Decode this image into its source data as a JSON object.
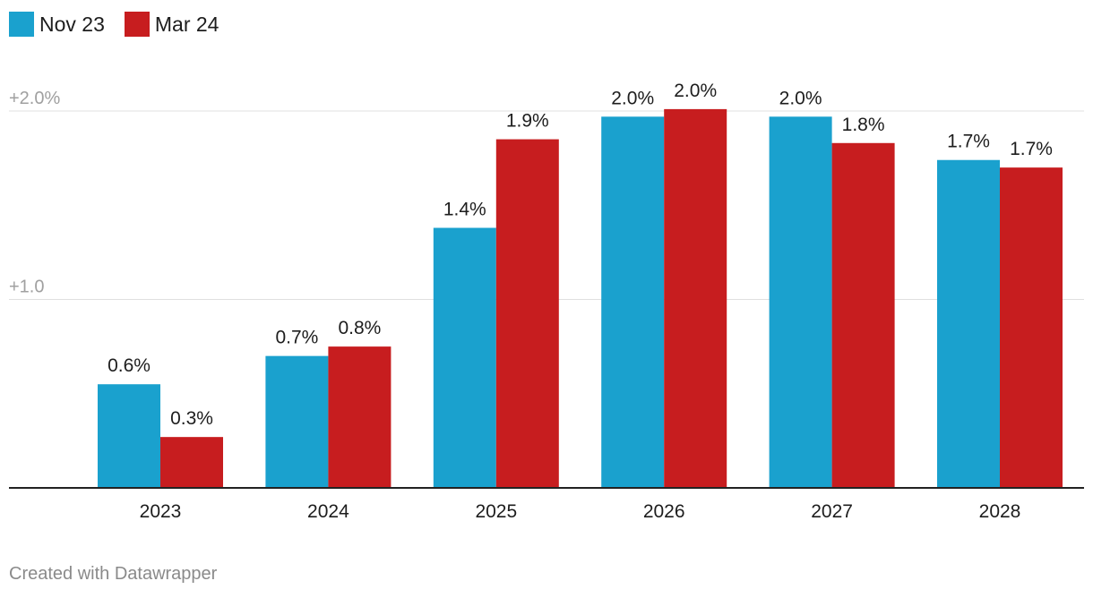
{
  "legend": [
    {
      "name": "Nov 23",
      "color": "#1aa1ce"
    },
    {
      "name": "Mar 24",
      "color": "#c71d1f"
    }
  ],
  "chart_data": {
    "type": "bar",
    "categories": [
      "2023",
      "2024",
      "2025",
      "2026",
      "2027",
      "2028"
    ],
    "series": [
      {
        "name": "Nov 23",
        "color": "#1aa1ce",
        "values": [
          0.55,
          0.7,
          1.38,
          1.97,
          1.97,
          1.74
        ],
        "labels": [
          "0.6%",
          "0.7%",
          "1.4%",
          "2.0%",
          "2.0%",
          "1.7%"
        ]
      },
      {
        "name": "Mar 24",
        "color": "#c71d1f",
        "values": [
          0.27,
          0.75,
          1.85,
          2.01,
          1.83,
          1.7
        ],
        "labels": [
          "0.3%",
          "0.8%",
          "1.9%",
          "2.0%",
          "1.8%",
          "1.7%"
        ]
      }
    ],
    "yticks": [
      {
        "value": 2.0,
        "label": "+2.0%"
      },
      {
        "value": 1.0,
        "label": "+1.0"
      }
    ],
    "ylim": [
      0,
      2.0
    ],
    "grid": true,
    "legend_position": "top-left"
  },
  "footer": {
    "credit": "Created with Datawrapper"
  }
}
